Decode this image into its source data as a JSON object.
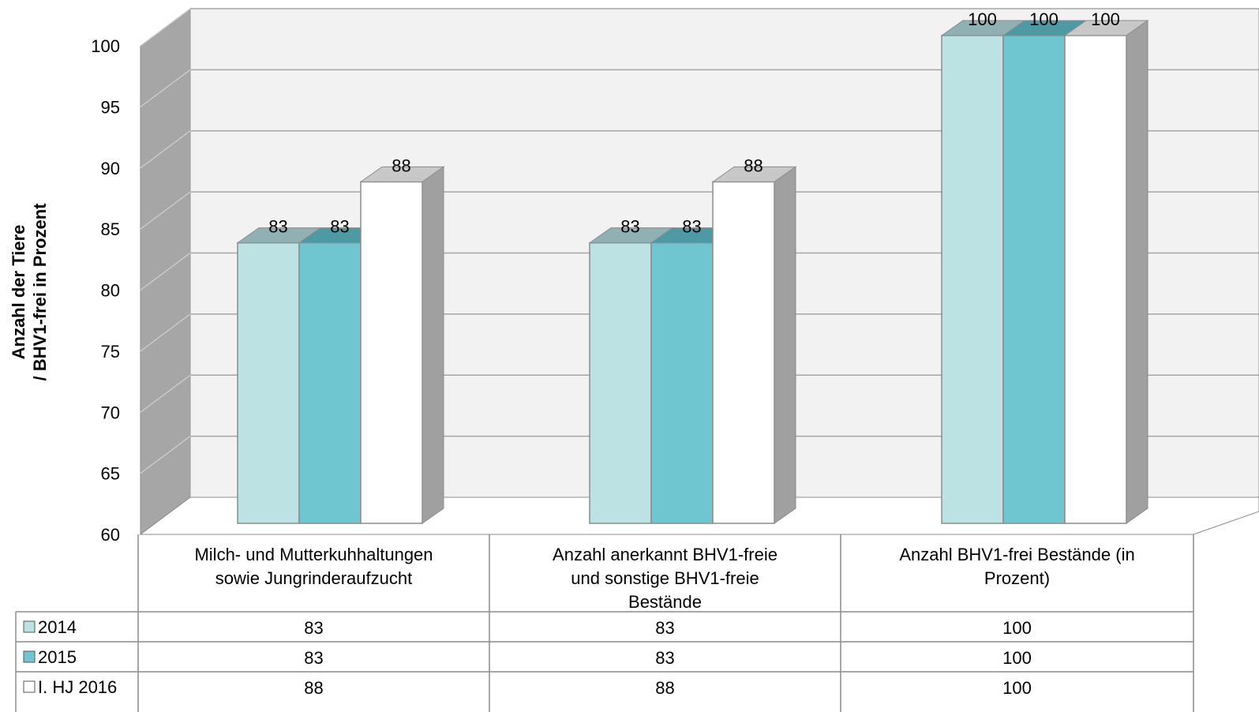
{
  "chart_data": {
    "type": "bar",
    "ylabel": [
      "Anzahl der Tiere",
      "/ BHV1-frei in Prozent"
    ],
    "ylim": [
      60,
      100
    ],
    "yticks": [
      60,
      65,
      70,
      75,
      80,
      85,
      90,
      95,
      100
    ],
    "grid": true,
    "categories": [
      [
        "Milch- und Mutterkuhhaltungen",
        "sowie Jungrinderaufzucht"
      ],
      [
        "Anzahl anerkannt BHV1-freie",
        "und sonstige BHV1-freie",
        "Bestände"
      ],
      [
        "Anzahl BHV1-frei Bestände (in",
        "Prozent)"
      ]
    ],
    "series": [
      {
        "name": "2014",
        "values": [
          83,
          83,
          100
        ],
        "color": "#bde2e4"
      },
      {
        "name": "2015",
        "values": [
          83,
          83,
          100
        ],
        "color": "#6fc6d1"
      },
      {
        "name": "I. HJ 2016",
        "values": [
          88,
          88,
          100
        ],
        "color": "#ffffff"
      }
    ],
    "legend": "data-table"
  },
  "colors": {
    "wall": "#f2f2f2",
    "side_wall": "#a6a6a6",
    "gridline": "#a6a6a6",
    "bar_side": "#a0a0a0"
  }
}
